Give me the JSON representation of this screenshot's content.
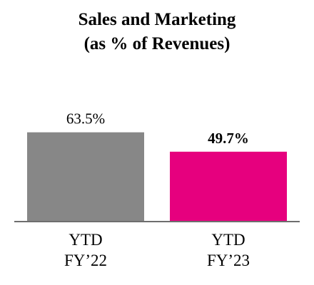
{
  "chart_data": {
    "type": "bar",
    "title_lines": [
      "Sales and Marketing",
      "(as % of Revenues)"
    ],
    "categories": [
      [
        "YTD",
        "FY’22"
      ],
      [
        "YTD",
        "FY’23"
      ]
    ],
    "values": [
      63.5,
      49.7
    ],
    "data_labels": [
      "63.5%",
      "49.7%"
    ],
    "data_label_bold": [
      false,
      true
    ],
    "colors": [
      "#878787",
      "#e6007e"
    ],
    "axis_color": "#6e6e6e",
    "ylim": [
      0,
      100
    ],
    "grid": false,
    "legend": "none"
  }
}
